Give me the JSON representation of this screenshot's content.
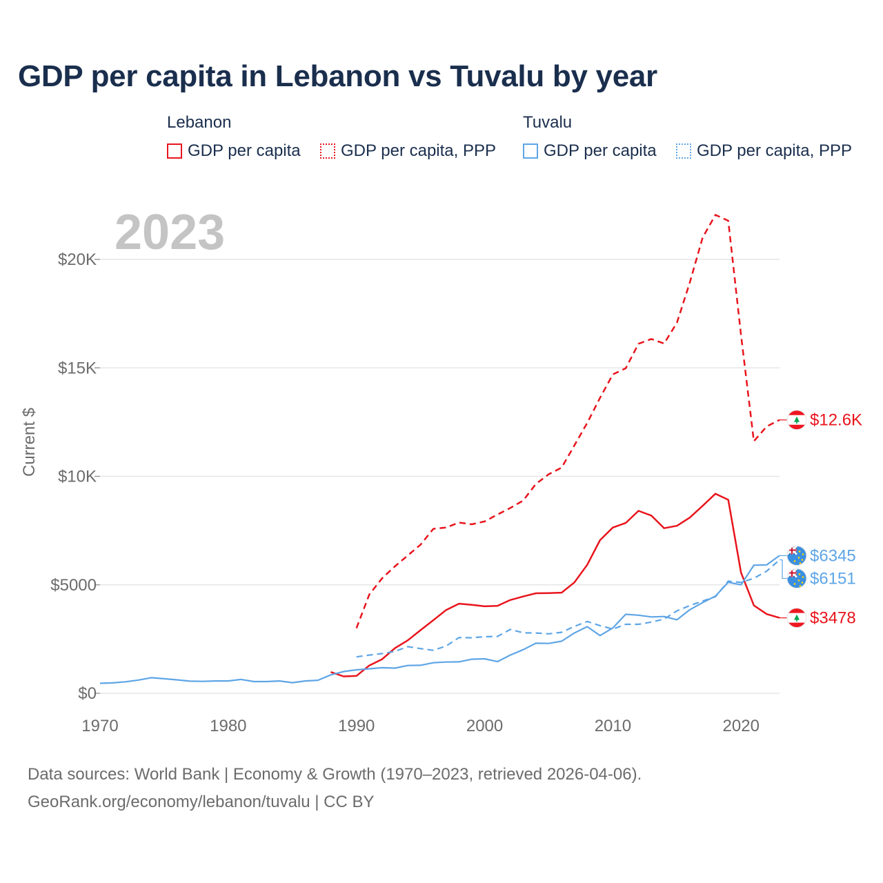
{
  "title": "GDP per capita in Lebanon vs Tuvalu by year",
  "legend": {
    "groups": [
      {
        "country": "Lebanon",
        "color": "#e8141c",
        "items": [
          {
            "label": "GDP per capita",
            "style": "solid"
          },
          {
            "label": "GDP per capita, PPP",
            "style": "dotted"
          }
        ]
      },
      {
        "country": "Tuvalu",
        "color": "#5ea5e6",
        "items": [
          {
            "label": "GDP per capita",
            "style": "solid"
          },
          {
            "label": "GDP per capita, PPP",
            "style": "dotted"
          }
        ]
      }
    ]
  },
  "footer": {
    "line1": "Data sources: World Bank | Economy & Growth (1970–2023, retrieved 2026-04-06).",
    "line2": "GeoRank.org/economy/lebanon/tuvalu | CC BY"
  },
  "chart_data": {
    "type": "line",
    "title": "GDP per capita in Lebanon vs Tuvalu by year",
    "year_watermark": "2023",
    "xlabel": "",
    "ylabel": "Current $",
    "xlim": [
      1970,
      2023
    ],
    "ylim": [
      0,
      22500
    ],
    "x_ticks": [
      1970,
      1980,
      1990,
      2000,
      2010,
      2020
    ],
    "y_ticks": [
      {
        "value": 0,
        "label": "$0"
      },
      {
        "value": 5000,
        "label": "$5000"
      },
      {
        "value": 10000,
        "label": "$10K"
      },
      {
        "value": 15000,
        "label": "$15K"
      },
      {
        "value": 20000,
        "label": "$20K"
      }
    ],
    "grid": true,
    "series": [
      {
        "name": "Lebanon GDP per capita",
        "country": "Lebanon",
        "color": "#e8141c",
        "dash": "solid",
        "end_label": "$3478",
        "x": [
          1988,
          1989,
          1990,
          1991,
          1992,
          1993,
          1994,
          1995,
          1996,
          1997,
          1998,
          1999,
          2000,
          2001,
          2002,
          2003,
          2004,
          2005,
          2006,
          2007,
          2008,
          2009,
          2010,
          2011,
          2012,
          2013,
          2014,
          2015,
          2016,
          2017,
          2018,
          2019,
          2020,
          2021,
          2022,
          2023
        ],
        "values": [
          980,
          780,
          800,
          1280,
          1570,
          2080,
          2440,
          2910,
          3370,
          3840,
          4130,
          4080,
          4010,
          4030,
          4300,
          4460,
          4610,
          4620,
          4640,
          5110,
          5920,
          7060,
          7640,
          7850,
          8410,
          8190,
          7610,
          7720,
          8100,
          8640,
          9200,
          8920,
          5560,
          4050,
          3650,
          3478
        ]
      },
      {
        "name": "Lebanon GDP per capita, PPP",
        "country": "Lebanon",
        "color": "#e8141c",
        "dash": "dashed",
        "end_label": "$12.6K",
        "x": [
          1990,
          1991,
          1992,
          1993,
          1994,
          1995,
          1996,
          1997,
          1998,
          1999,
          2000,
          2001,
          2002,
          2003,
          2004,
          2005,
          2006,
          2007,
          2008,
          2009,
          2010,
          2011,
          2012,
          2013,
          2014,
          2015,
          2016,
          2017,
          2018,
          2019,
          2020,
          2021,
          2022,
          2023
        ],
        "values": [
          3000,
          4550,
          5300,
          5850,
          6350,
          6850,
          7580,
          7640,
          7870,
          7790,
          7920,
          8240,
          8540,
          8880,
          9650,
          10100,
          10400,
          11420,
          12460,
          13620,
          14700,
          14980,
          16110,
          16330,
          16120,
          17080,
          18930,
          21000,
          22050,
          21780,
          16510,
          11620,
          12300,
          12600
        ]
      },
      {
        "name": "Tuvalu GDP per capita",
        "country": "Tuvalu",
        "color": "#5ea5e6",
        "dash": "solid",
        "end_label": "$6345",
        "x": [
          1970,
          1971,
          1972,
          1973,
          1974,
          1975,
          1976,
          1977,
          1978,
          1979,
          1980,
          1981,
          1982,
          1983,
          1984,
          1985,
          1986,
          1987,
          1988,
          1989,
          1990,
          1991,
          1992,
          1993,
          1994,
          1995,
          1996,
          1997,
          1998,
          1999,
          2000,
          2001,
          2002,
          2003,
          2004,
          2005,
          2006,
          2007,
          2008,
          2009,
          2010,
          2011,
          2012,
          2013,
          2014,
          2015,
          2016,
          2017,
          2018,
          2019,
          2020,
          2021,
          2022,
          2023
        ],
        "values": [
          460,
          480,
          530,
          610,
          720,
          670,
          620,
          560,
          550,
          570,
          570,
          640,
          540,
          540,
          570,
          490,
          570,
          600,
          850,
          1000,
          1080,
          1130,
          1180,
          1160,
          1280,
          1290,
          1410,
          1440,
          1450,
          1570,
          1590,
          1460,
          1760,
          2010,
          2310,
          2300,
          2400,
          2780,
          3070,
          2660,
          3010,
          3640,
          3600,
          3520,
          3540,
          3390,
          3850,
          4180,
          4480,
          5120,
          5000,
          5900,
          5920,
          6345
        ]
      },
      {
        "name": "Tuvalu GDP per capita, PPP",
        "country": "Tuvalu",
        "color": "#5ea5e6",
        "dash": "dashed",
        "end_label": "$6151",
        "x": [
          1990,
          1991,
          1992,
          1993,
          1994,
          1995,
          1996,
          1997,
          1998,
          1999,
          2000,
          2001,
          2002,
          2003,
          2004,
          2005,
          2006,
          2007,
          2008,
          2009,
          2010,
          2011,
          2012,
          2013,
          2014,
          2015,
          2016,
          2017,
          2018,
          2019,
          2020,
          2021,
          2022,
          2023
        ],
        "values": [
          1680,
          1760,
          1830,
          1930,
          2150,
          2060,
          1980,
          2180,
          2570,
          2560,
          2610,
          2620,
          2940,
          2790,
          2780,
          2740,
          2810,
          3080,
          3310,
          3120,
          2960,
          3180,
          3180,
          3280,
          3420,
          3800,
          4040,
          4250,
          4450,
          5170,
          5110,
          5300,
          5630,
          6151
        ]
      }
    ]
  }
}
